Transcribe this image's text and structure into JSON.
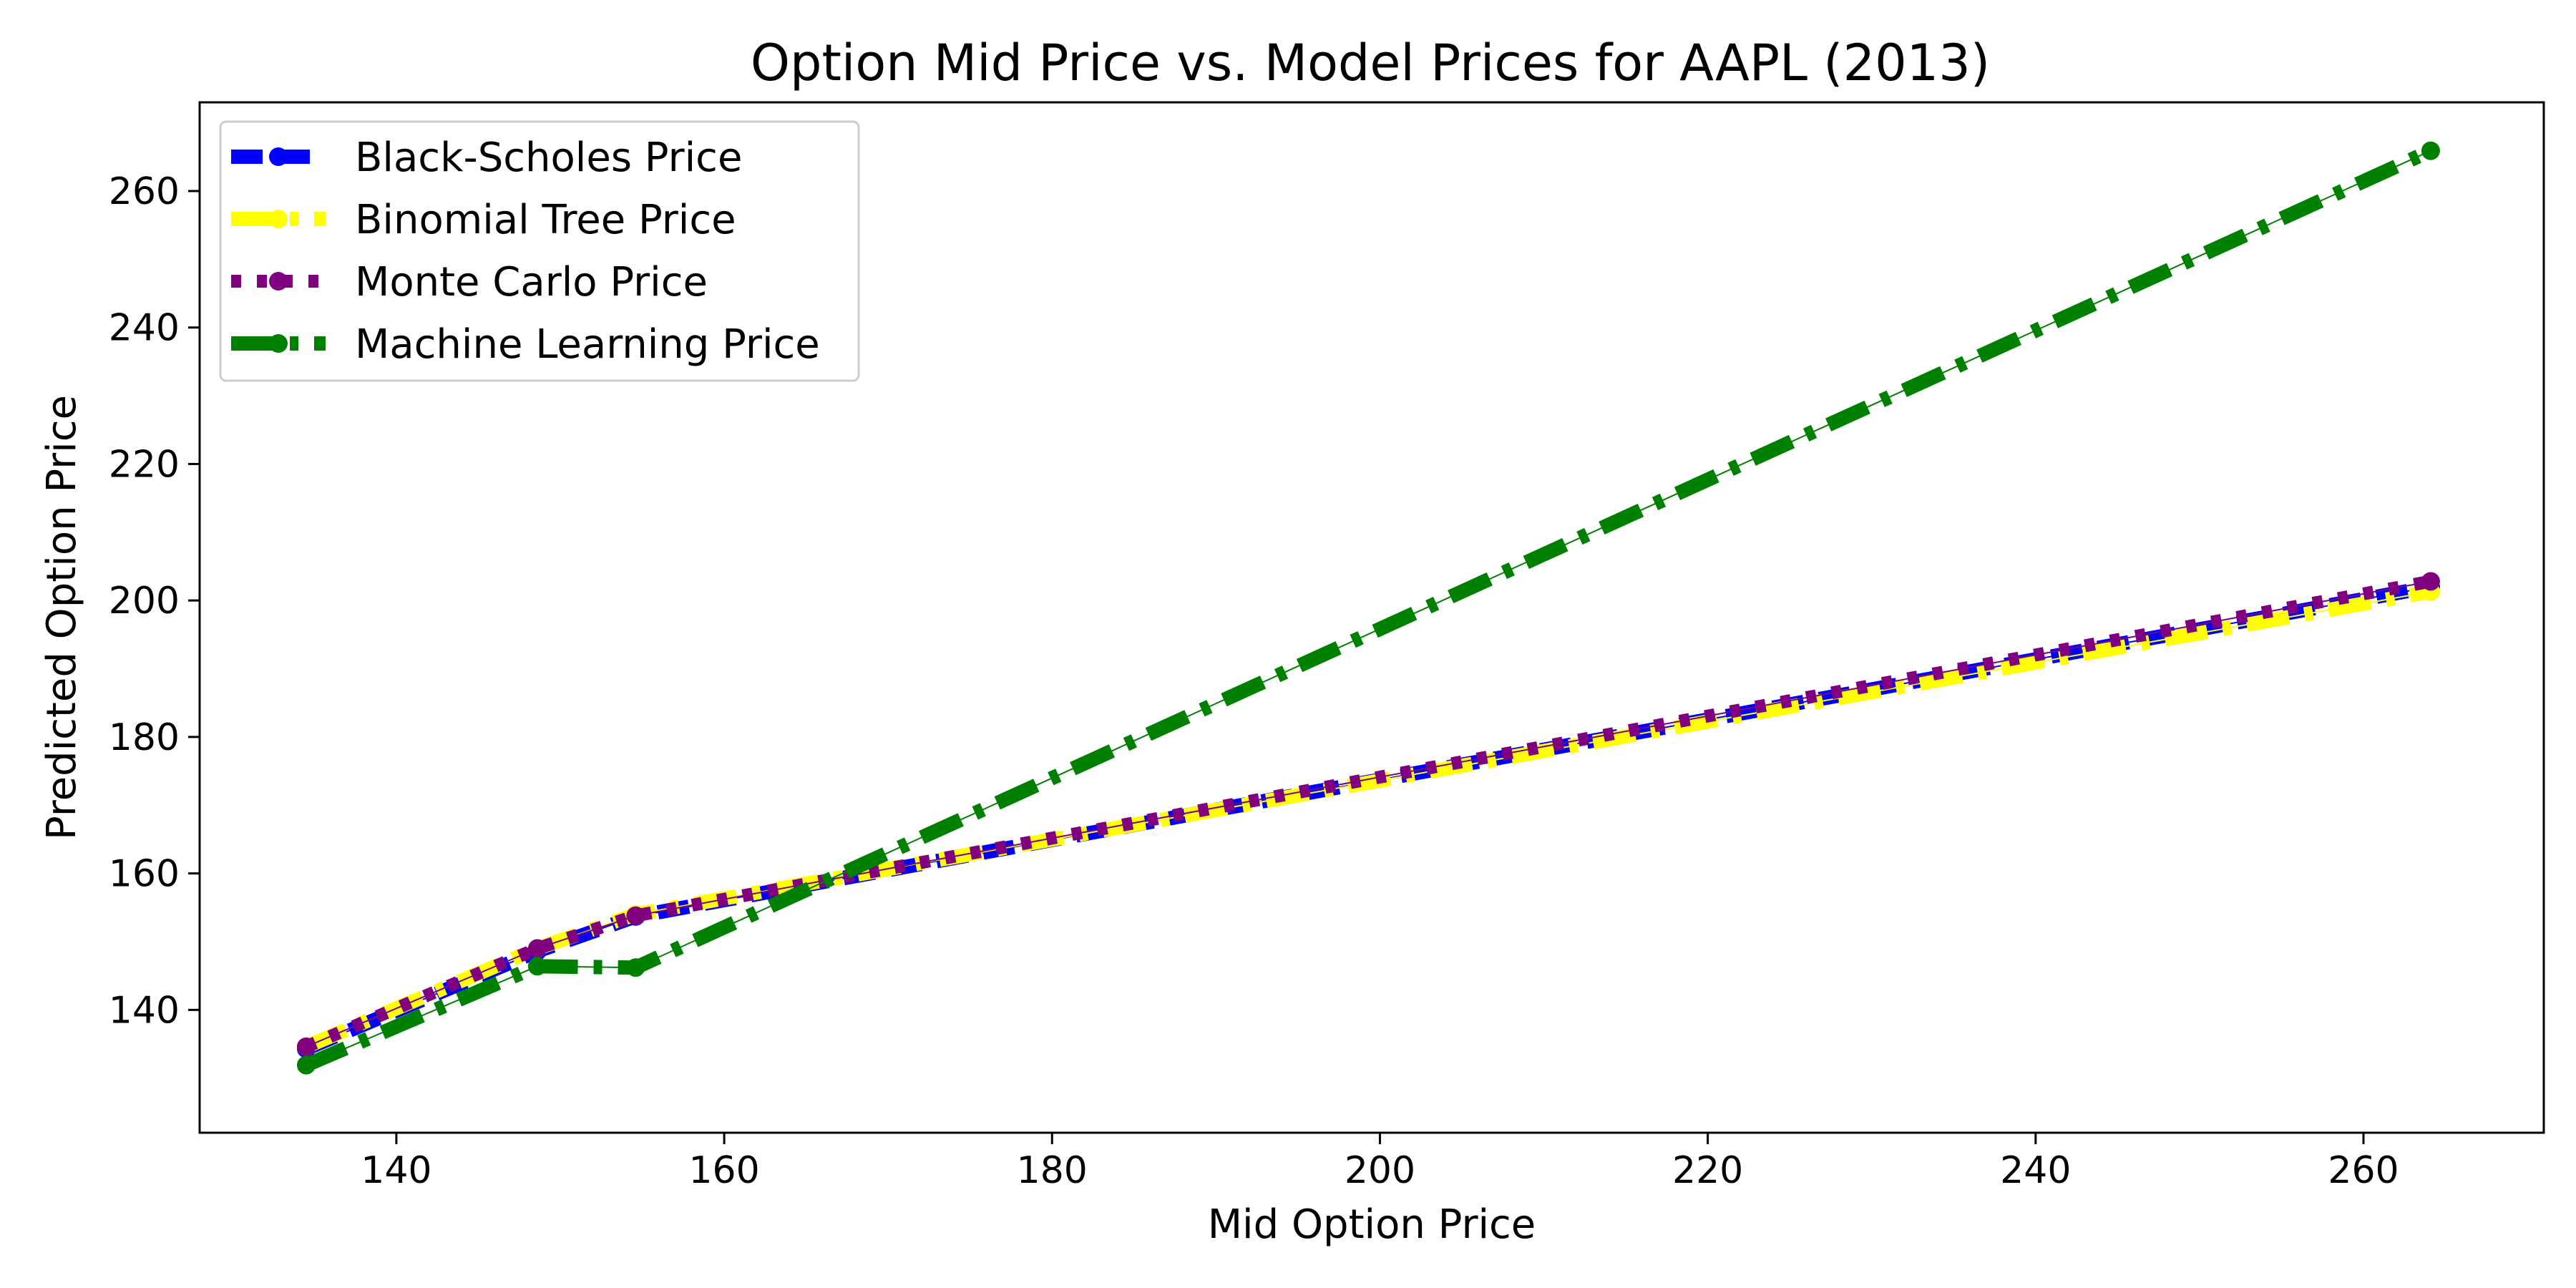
{
  "chart_data": {
    "type": "line",
    "title": "Option Mid Price vs. Model Prices for AAPL (2013)",
    "xlabel": "Mid Option Price",
    "ylabel": "Predicted Option Price",
    "xlim": [
      128,
      271
    ],
    "ylim": [
      122,
      273
    ],
    "xticks": [
      140,
      160,
      180,
      200,
      220,
      240,
      260
    ],
    "yticks": [
      140,
      160,
      180,
      200,
      220,
      240,
      260
    ],
    "xtick_labels": [
      "140",
      "160",
      "180",
      "200",
      "220",
      "240",
      "260"
    ],
    "ytick_labels": [
      "140",
      "160",
      "180",
      "200",
      "220",
      "240",
      "260"
    ],
    "grid": false,
    "legend_position": "top-left",
    "x": [
      134.5,
      148.6,
      154.6,
      264.1
    ],
    "series": [
      {
        "name": "Black-Scholes Price",
        "values": [
          134.3,
          148.6,
          153.7,
          202.0
        ],
        "color": "#0000ff",
        "style": "dashed"
      },
      {
        "name": "Binomial Tree Price",
        "values": [
          134.6,
          149.0,
          154.0,
          201.3
        ],
        "color": "#ffff00",
        "style": "dashdot"
      },
      {
        "name": "Monte Carlo Price",
        "values": [
          134.6,
          149.0,
          153.8,
          202.8
        ],
        "color": "#800080",
        "style": "dotted"
      },
      {
        "name": "Machine Learning Price",
        "values": [
          131.9,
          146.4,
          146.2,
          265.9
        ],
        "color": "#008000",
        "style": "dashdot"
      }
    ]
  }
}
